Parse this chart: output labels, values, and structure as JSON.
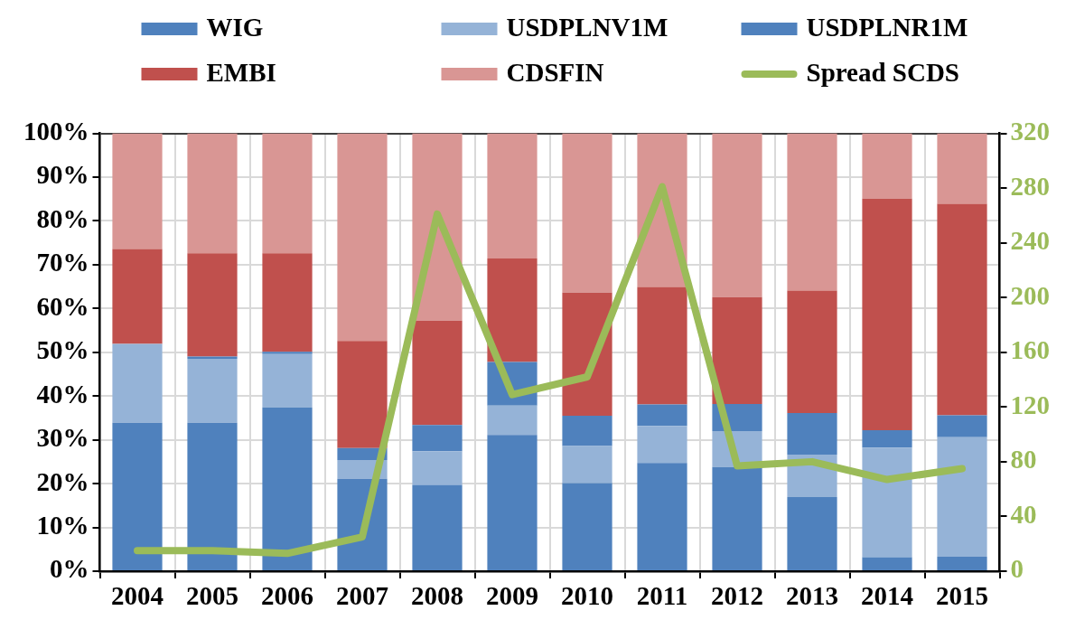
{
  "chart_data": {
    "type": "bar",
    "stacked": true,
    "categories": [
      "2004",
      "2005",
      "2006",
      "2007",
      "2008",
      "2009",
      "2010",
      "2011",
      "2012",
      "2013",
      "2014",
      "2015"
    ],
    "series": [
      {
        "name": "WIG",
        "color": "#4f81bd",
        "values": [
          33.9,
          33.9,
          37.4,
          21.1,
          19.7,
          31.1,
          20.1,
          24.7,
          23.8,
          16.9,
          3.2,
          3.3
        ]
      },
      {
        "name": "USDPLNV1M",
        "color": "#95b3d7",
        "values": [
          18.0,
          14.6,
          12.2,
          4.3,
          7.7,
          6.7,
          8.5,
          8.5,
          8.2,
          9.7,
          25.0,
          27.3
        ]
      },
      {
        "name": "USDPLNR1M",
        "color": "#4f81bd",
        "values": [
          0,
          0.5,
          0.5,
          2.7,
          6.0,
          10.0,
          6.9,
          4.9,
          6.2,
          9.5,
          4.0,
          5.0
        ]
      },
      {
        "name": "EMBI",
        "color": "#c0504d",
        "values": [
          21.7,
          23.6,
          22.5,
          24.5,
          23.8,
          23.6,
          28.1,
          26.8,
          24.4,
          28.0,
          52.9,
          48.3
        ]
      },
      {
        "name": "CDSFIN",
        "color": "#d99694",
        "values": [
          26.4,
          27.4,
          27.4,
          47.4,
          42.8,
          28.6,
          36.4,
          35.1,
          37.4,
          35.9,
          14.9,
          16.1
        ]
      },
      {
        "name": "Spread SCDS",
        "type": "line",
        "axis": "y2",
        "color": "#9bbb59",
        "values": [
          15,
          15,
          13,
          25,
          261,
          129,
          142,
          281,
          77,
          80,
          67,
          75
        ]
      }
    ],
    "ylim": [
      0,
      100
    ],
    "yticks": [
      {
        "value": 0,
        "label": "0%"
      },
      {
        "value": 10,
        "label": "10%"
      },
      {
        "value": 20,
        "label": "20%"
      },
      {
        "value": 30,
        "label": "30%"
      },
      {
        "value": 40,
        "label": "40%"
      },
      {
        "value": 50,
        "label": "50%"
      },
      {
        "value": 60,
        "label": "60%"
      },
      {
        "value": 70,
        "label": "70%"
      },
      {
        "value": 80,
        "label": "80%"
      },
      {
        "value": 90,
        "label": "90%"
      },
      {
        "value": 100,
        "label": "100%"
      }
    ],
    "y2lim": [
      0,
      320
    ],
    "y2ticks": [
      0,
      40,
      80,
      120,
      160,
      200,
      240,
      280,
      320
    ],
    "grid": true,
    "legend": "top",
    "marker": "none",
    "line_style": "solid"
  }
}
